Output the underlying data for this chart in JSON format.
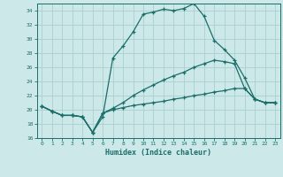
{
  "xlabel": "Humidex (Indice chaleur)",
  "bg_color": "#cde8e8",
  "grid_color": "#aacfcf",
  "line_color": "#1a6e6a",
  "xlim": [
    -0.5,
    23.5
  ],
  "ylim": [
    16,
    35
  ],
  "xticks": [
    0,
    1,
    2,
    3,
    4,
    5,
    6,
    7,
    8,
    9,
    10,
    11,
    12,
    13,
    14,
    15,
    16,
    17,
    18,
    19,
    20,
    21,
    22,
    23
  ],
  "yticks": [
    16,
    18,
    20,
    22,
    24,
    26,
    28,
    30,
    32,
    34
  ],
  "curve1_x": [
    0,
    1,
    2,
    3,
    4,
    5,
    6,
    7,
    8,
    9,
    10,
    11,
    12,
    13,
    14,
    15,
    16,
    17,
    18,
    19,
    20,
    21,
    22,
    23
  ],
  "curve1_y": [
    20.5,
    19.8,
    19.2,
    19.2,
    19.0,
    16.8,
    19.0,
    27.3,
    29.0,
    31.0,
    33.5,
    33.8,
    34.2,
    34.0,
    34.3,
    35.0,
    33.2,
    29.8,
    28.5,
    27.0,
    24.5,
    21.5,
    21.0,
    21.0
  ],
  "curve2_x": [
    0,
    1,
    2,
    3,
    4,
    5,
    6,
    7,
    8,
    9,
    10,
    11,
    12,
    13,
    14,
    15,
    16,
    17,
    18,
    19,
    20,
    21,
    22,
    23
  ],
  "curve2_y": [
    20.5,
    19.8,
    19.2,
    19.2,
    19.0,
    16.8,
    19.5,
    20.2,
    21.0,
    22.0,
    22.8,
    23.5,
    24.2,
    24.8,
    25.3,
    26.0,
    26.5,
    27.0,
    26.8,
    26.5,
    23.0,
    21.5,
    21.0,
    21.0
  ],
  "curve3_x": [
    0,
    1,
    2,
    3,
    4,
    5,
    6,
    7,
    8,
    9,
    10,
    11,
    12,
    13,
    14,
    15,
    16,
    17,
    18,
    19,
    20,
    21,
    22,
    23
  ],
  "curve3_y": [
    20.5,
    19.8,
    19.2,
    19.2,
    19.0,
    16.8,
    19.5,
    20.0,
    20.3,
    20.6,
    20.8,
    21.0,
    21.2,
    21.5,
    21.7,
    22.0,
    22.2,
    22.5,
    22.7,
    23.0,
    23.0,
    21.5,
    21.0,
    21.0
  ]
}
